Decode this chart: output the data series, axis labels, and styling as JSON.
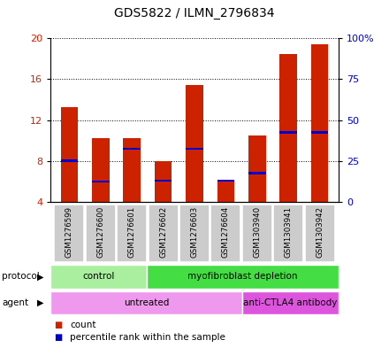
{
  "title": "GDS5822 / ILMN_2796834",
  "samples": [
    "GSM1276599",
    "GSM1276600",
    "GSM1276601",
    "GSM1276602",
    "GSM1276603",
    "GSM1276604",
    "GSM1303940",
    "GSM1303941",
    "GSM1303942"
  ],
  "counts": [
    13.3,
    10.2,
    10.2,
    8.0,
    15.4,
    6.1,
    10.5,
    18.5,
    19.4
  ],
  "percentile_ranks": [
    25.0,
    12.5,
    32.5,
    13.0,
    32.5,
    13.0,
    17.5,
    42.5,
    42.5
  ],
  "ymin": 4,
  "ymax": 20,
  "yticks": [
    4,
    8,
    12,
    16,
    20
  ],
  "y2ticks_vals": [
    0,
    25,
    50,
    75,
    100
  ],
  "y2ticks_labels": [
    "0",
    "25",
    "50",
    "75",
    "100%"
  ],
  "bar_color": "#cc2200",
  "percentile_color": "#0000cc",
  "bar_width": 0.55,
  "protocol_groups": [
    {
      "label": "control",
      "start": 0,
      "end": 3,
      "color": "#aaeea0"
    },
    {
      "label": "myofibroblast depletion",
      "start": 3,
      "end": 9,
      "color": "#44dd44"
    }
  ],
  "agent_groups": [
    {
      "label": "untreated",
      "start": 0,
      "end": 6,
      "color": "#ee99ee"
    },
    {
      "label": "anti-CTLA4 antibody",
      "start": 6,
      "end": 9,
      "color": "#dd55dd"
    }
  ],
  "legend_count_color": "#cc2200",
  "legend_percentile_color": "#0000cc",
  "bg_color": "#ffffff",
  "grid_color": "#000000",
  "label_row_color": "#cccccc",
  "proto_label": "protocol",
  "agent_label": "agent"
}
